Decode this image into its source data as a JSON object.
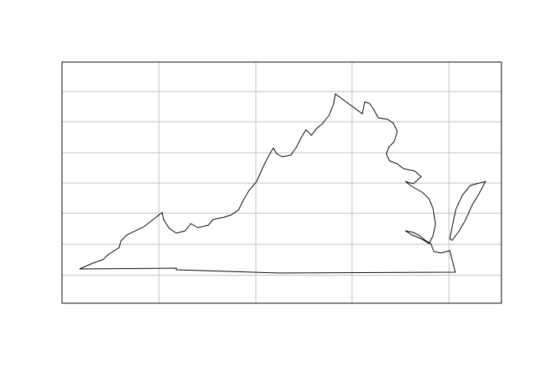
{
  "map": {
    "colors": {
      "background": "#ffffff",
      "grid": "#bebebe",
      "outline": "#000000",
      "frame": "#000000"
    },
    "grid": true,
    "axis_labels_shown": false
  }
}
